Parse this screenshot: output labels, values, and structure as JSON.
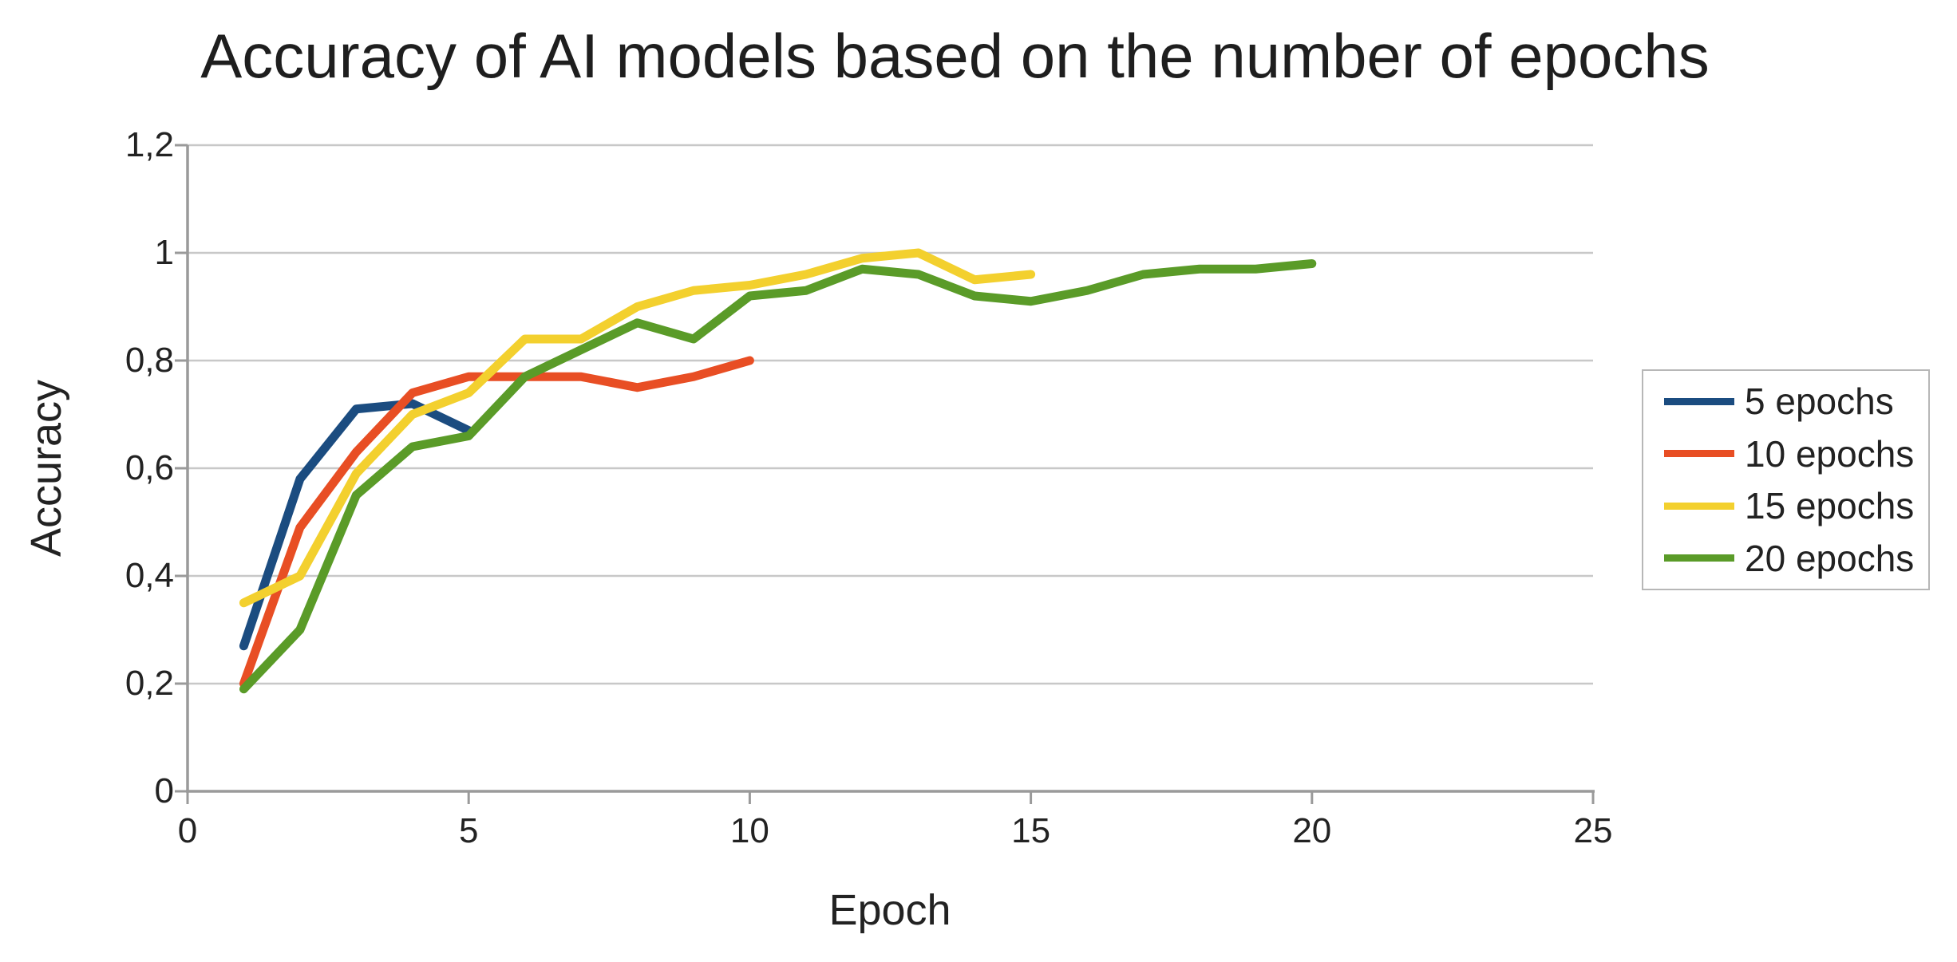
{
  "title": "Accuracy of AI models based on the number of epochs",
  "chart_data": {
    "type": "line",
    "title": "Accuracy of AI models based on the number of epochs",
    "xlabel": "Epoch",
    "ylabel": "Accuracy",
    "xlim": [
      0,
      25
    ],
    "ylim": [
      0,
      1.2
    ],
    "x_ticks": [
      0,
      5,
      10,
      15,
      20,
      25
    ],
    "x_tick_labels": [
      "0",
      "5",
      "10",
      "15",
      "20",
      "25"
    ],
    "y_ticks": [
      0,
      0.2,
      0.4,
      0.6,
      0.8,
      1.0,
      1.2
    ],
    "y_tick_labels": [
      "0",
      "0,2",
      "0,4",
      "0,6",
      "0,8",
      "1",
      "1,2"
    ],
    "decimal_separator": ",",
    "grid": "horizontal-major",
    "legend_position": "right",
    "series": [
      {
        "name": "5 epochs",
        "color": "#1b4c80",
        "x": [
          1,
          2,
          3,
          4,
          5
        ],
        "values": [
          0.27,
          0.58,
          0.71,
          0.72,
          0.67
        ]
      },
      {
        "name": "10 epochs",
        "color": "#e84e24",
        "x": [
          1,
          2,
          3,
          4,
          5,
          6,
          7,
          8,
          9,
          10
        ],
        "values": [
          0.2,
          0.49,
          0.63,
          0.74,
          0.77,
          0.77,
          0.77,
          0.75,
          0.77,
          0.8
        ]
      },
      {
        "name": "15 epochs",
        "color": "#f3d02e",
        "x": [
          1,
          2,
          3,
          4,
          5,
          6,
          7,
          8,
          9,
          10,
          11,
          12,
          13,
          14,
          15
        ],
        "values": [
          0.35,
          0.4,
          0.59,
          0.7,
          0.74,
          0.84,
          0.84,
          0.9,
          0.93,
          0.94,
          0.96,
          0.99,
          1.0,
          0.95,
          0.96
        ]
      },
      {
        "name": "20 epochs",
        "color": "#5a9b28",
        "x": [
          1,
          2,
          3,
          4,
          5,
          6,
          7,
          8,
          9,
          10,
          11,
          12,
          13,
          14,
          15,
          16,
          17,
          18,
          19,
          20
        ],
        "values": [
          0.19,
          0.3,
          0.55,
          0.64,
          0.66,
          0.77,
          0.82,
          0.87,
          0.84,
          0.92,
          0.93,
          0.97,
          0.96,
          0.92,
          0.91,
          0.93,
          0.96,
          0.97,
          0.97,
          0.98
        ]
      }
    ],
    "style_colors": {
      "axis": "#9a9a9a",
      "gridline": "#c8c8c8",
      "tick": "#9a9a9a",
      "text": "#222222",
      "background": "#ffffff"
    }
  }
}
